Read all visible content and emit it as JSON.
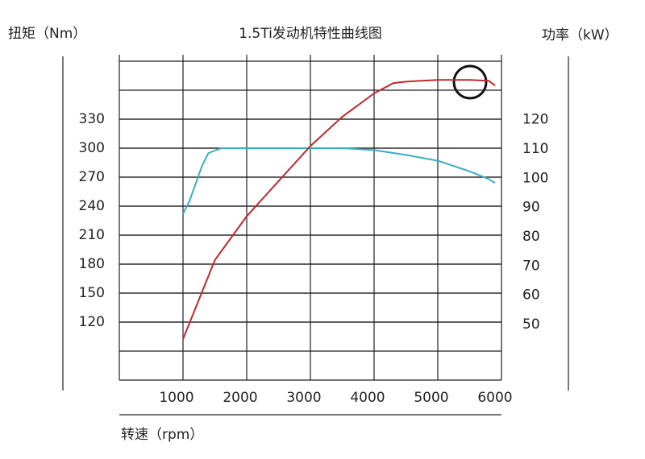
{
  "chart_data": {
    "type": "line",
    "title": "1.5Ti发动机特性曲线图",
    "ylabel": "扭矩（Nm）",
    "y2label": "功率（kW）",
    "xlabel": "转速（rpm）",
    "xlim": [
      0,
      6000
    ],
    "xticks": [
      1000,
      2000,
      3000,
      4000,
      5000,
      6000
    ],
    "ylim": [
      60,
      390
    ],
    "yticks": [
      120,
      150,
      180,
      210,
      240,
      270,
      300,
      330
    ],
    "y2lim": [
      31,
      140
    ],
    "y2ticks": [
      50,
      60,
      70,
      80,
      90,
      100,
      110,
      120
    ],
    "grid": true,
    "series": [
      {
        "name": "扭矩",
        "color": "#3aacc4",
        "x": [
          1000,
          1100,
          1300,
          1400,
          1600,
          3500,
          4000,
          4500,
          5000,
          5500,
          5800,
          5900
        ],
        "values": [
          232,
          245,
          282,
          295,
          300,
          300,
          298,
          293,
          287,
          276,
          268,
          264
        ]
      },
      {
        "name": "功率",
        "color": "#c0282e",
        "axis": "y2",
        "x": [
          1000,
          1500,
          2000,
          2500,
          3000,
          3500,
          4000,
          4300,
          4500,
          5000,
          5500,
          5800,
          5900
        ],
        "values": [
          45,
          72,
          87,
          99,
          111,
          121,
          129,
          132.5,
          133,
          133.6,
          133.6,
          133.3,
          131.7
        ]
      }
    ]
  }
}
